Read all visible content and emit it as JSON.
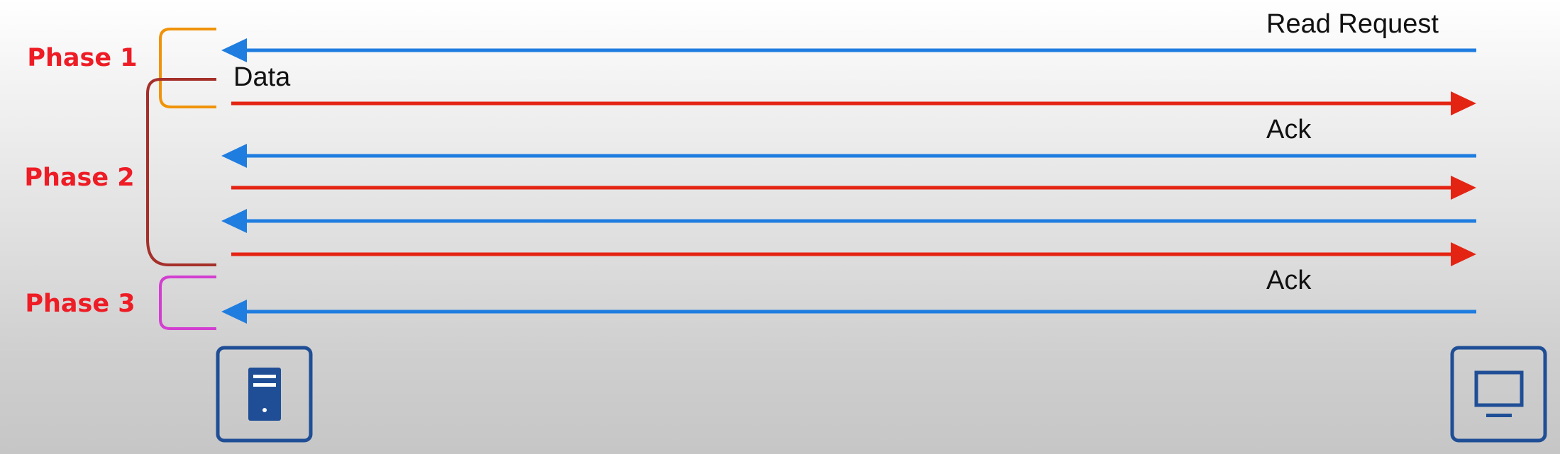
{
  "phases": [
    {
      "label": "Phase 1",
      "bracket_color": "#f0930a"
    },
    {
      "label": "Phase 2",
      "bracket_color": "#a5302a"
    },
    {
      "label": "Phase 3",
      "bracket_color": "#d23fd0"
    }
  ],
  "phase_label_color": "#ee1c25",
  "messages": [
    {
      "direction": "to-left",
      "color": "#1f7de0",
      "label": "Read Request"
    },
    {
      "direction": "to-right",
      "color": "#e42413",
      "label": "Data"
    },
    {
      "direction": "to-left",
      "color": "#1f7de0",
      "label": "Ack"
    },
    {
      "direction": "to-right",
      "color": "#e42413",
      "label": ""
    },
    {
      "direction": "to-left",
      "color": "#1f7de0",
      "label": ""
    },
    {
      "direction": "to-right",
      "color": "#e42413",
      "label": ""
    },
    {
      "direction": "to-left",
      "color": "#1f7de0",
      "label": "Ack"
    }
  ],
  "endpoints": {
    "left": {
      "icon": "server-icon",
      "color": "#1f4e96"
    },
    "right": {
      "icon": "computer-monitor-icon",
      "color": "#1f4e96"
    }
  }
}
